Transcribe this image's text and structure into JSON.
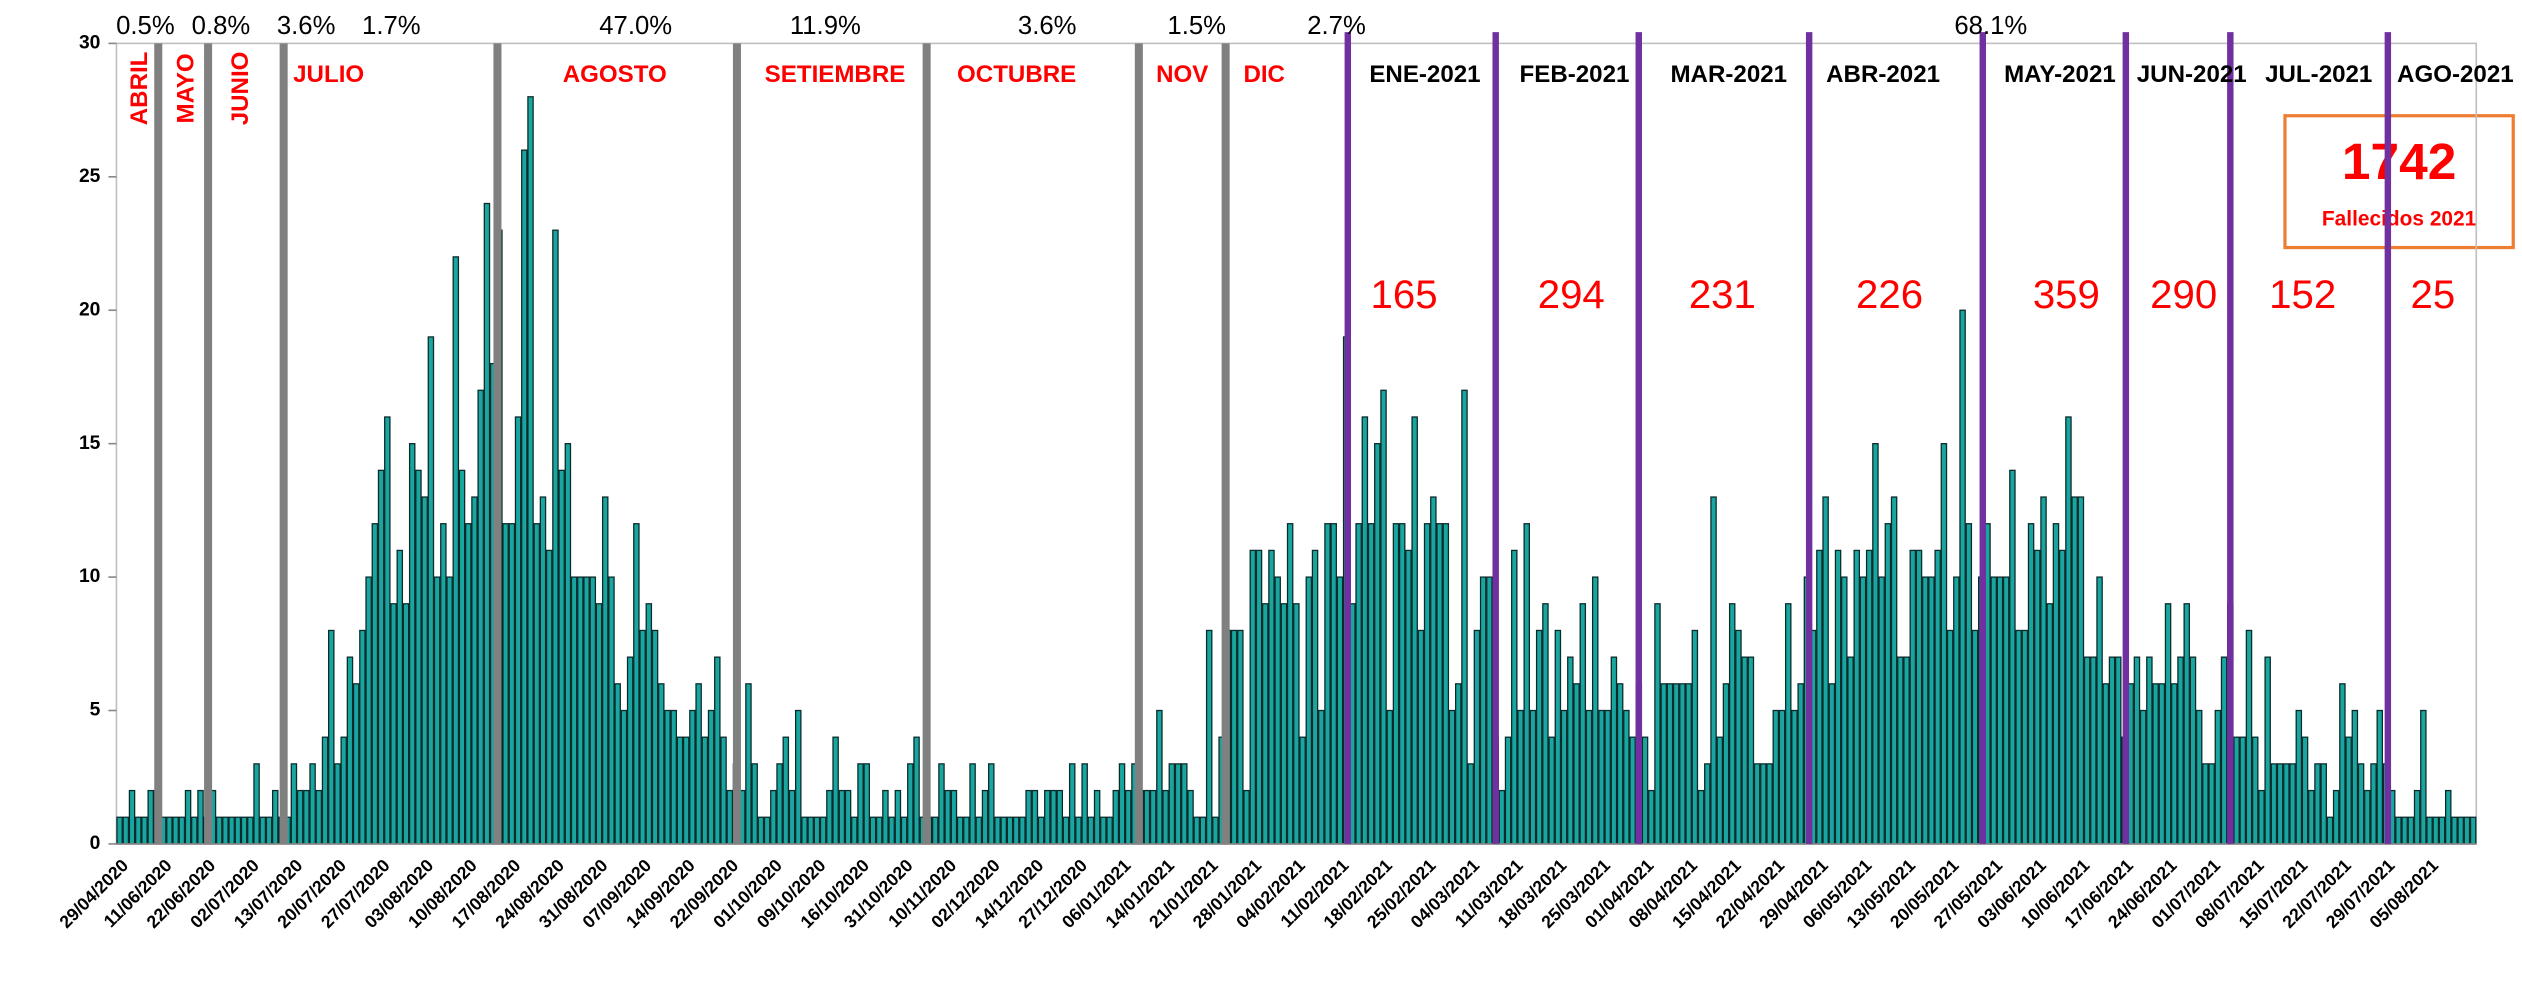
{
  "chart_data": {
    "type": "bar",
    "categories": [
      "29/04/2020",
      null,
      null,
      null,
      null,
      null,
      null,
      "11/06/2020",
      null,
      null,
      null,
      null,
      null,
      null,
      "22/06/2020",
      null,
      null,
      null,
      null,
      null,
      null,
      "02/07/2020",
      null,
      null,
      null,
      null,
      null,
      null,
      "13/07/2020",
      null,
      null,
      null,
      null,
      null,
      null,
      "20/07/2020",
      null,
      null,
      null,
      null,
      null,
      null,
      "27/07/2020",
      null,
      null,
      null,
      null,
      null,
      null,
      "03/08/2020",
      null,
      null,
      null,
      null,
      null,
      null,
      "10/08/2020",
      null,
      null,
      null,
      null,
      null,
      null,
      "17/08/2020",
      null,
      null,
      null,
      null,
      null,
      null,
      "24/08/2020",
      null,
      null,
      null,
      null,
      null,
      null,
      "31/08/2020",
      null,
      null,
      null,
      null,
      null,
      null,
      "07/09/2020",
      null,
      null,
      null,
      null,
      null,
      null,
      "14/09/2020",
      null,
      null,
      null,
      null,
      null,
      null,
      "22/09/2020",
      null,
      null,
      null,
      null,
      null,
      null,
      "01/10/2020",
      null,
      null,
      null,
      null,
      null,
      null,
      "09/10/2020",
      null,
      null,
      null,
      null,
      null,
      null,
      "16/10/2020",
      null,
      null,
      null,
      null,
      null,
      null,
      "31/10/2020",
      null,
      null,
      null,
      null,
      null,
      null,
      "10/11/2020",
      null,
      null,
      null,
      null,
      null,
      null,
      "02/12/2020",
      null,
      null,
      null,
      null,
      null,
      null,
      "14/12/2020",
      null,
      null,
      null,
      null,
      null,
      null,
      "27/12/2020",
      null,
      null,
      null,
      null,
      null,
      null,
      "06/01/2021",
      null,
      null,
      null,
      null,
      null,
      null,
      "14/01/2021",
      null,
      null,
      null,
      null,
      null,
      null,
      "21/01/2021",
      null,
      null,
      null,
      null,
      null,
      null,
      "28/01/2021",
      null,
      null,
      null,
      null,
      null,
      null,
      "04/02/2021",
      null,
      null,
      null,
      null,
      null,
      null,
      "11/02/2021",
      null,
      null,
      null,
      null,
      null,
      null,
      "18/02/2021",
      null,
      null,
      null,
      null,
      null,
      null,
      "25/02/2021",
      null,
      null,
      null,
      null,
      null,
      null,
      "04/03/2021",
      null,
      null,
      null,
      null,
      null,
      null,
      "11/03/2021",
      null,
      null,
      null,
      null,
      null,
      null,
      "18/03/2021",
      null,
      null,
      null,
      null,
      null,
      null,
      "25/03/2021",
      null,
      null,
      null,
      null,
      null,
      null,
      "01/04/2021",
      null,
      null,
      null,
      null,
      null,
      null,
      "08/04/2021",
      null,
      null,
      null,
      null,
      null,
      null,
      "15/04/2021",
      null,
      null,
      null,
      null,
      null,
      null,
      "22/04/2021",
      null,
      null,
      null,
      null,
      null,
      null,
      "29/04/2021",
      null,
      null,
      null,
      null,
      null,
      null,
      "06/05/2021",
      null,
      null,
      null,
      null,
      null,
      null,
      "13/05/2021",
      null,
      null,
      null,
      null,
      null,
      null,
      "20/05/2021",
      null,
      null,
      null,
      null,
      null,
      null,
      "27/05/2021",
      null,
      null,
      null,
      null,
      null,
      null,
      "03/06/2021",
      null,
      null,
      null,
      null,
      null,
      null,
      "10/06/2021",
      null,
      null,
      null,
      null,
      null,
      null,
      "17/06/2021",
      null,
      null,
      null,
      null,
      null,
      null,
      "24/06/2021",
      null,
      null,
      null,
      null,
      null,
      null,
      "01/07/2021",
      null,
      null,
      null,
      null,
      null,
      null,
      "08/07/2021",
      null,
      null,
      null,
      null,
      null,
      null,
      "15/07/2021",
      null,
      null,
      null,
      null,
      null,
      null,
      "22/07/2021",
      null,
      null,
      null,
      null,
      null,
      null,
      "29/07/2021",
      null,
      null,
      null,
      null,
      null,
      null,
      "05/08/2021",
      null,
      null,
      null,
      null,
      null,
      null,
      null
    ],
    "values": [
      1,
      1,
      2,
      1,
      1,
      2,
      2,
      1,
      1,
      1,
      1,
      2,
      1,
      2,
      1,
      2,
      1,
      1,
      1,
      1,
      1,
      1,
      3,
      1,
      1,
      2,
      1,
      1,
      3,
      2,
      2,
      3,
      2,
      4,
      8,
      3,
      4,
      7,
      6,
      8,
      10,
      12,
      14,
      16,
      9,
      11,
      9,
      15,
      14,
      13,
      19,
      10,
      12,
      10,
      22,
      14,
      12,
      13,
      17,
      24,
      18,
      23,
      12,
      12,
      16,
      26,
      28,
      12,
      13,
      11,
      23,
      14,
      15,
      10,
      10,
      10,
      10,
      9,
      13,
      10,
      6,
      5,
      7,
      12,
      8,
      9,
      8,
      6,
      5,
      5,
      4,
      4,
      5,
      6,
      4,
      5,
      7,
      4,
      2,
      3,
      2,
      6,
      3,
      1,
      1,
      2,
      3,
      4,
      2,
      5,
      1,
      1,
      1,
      1,
      2,
      4,
      2,
      2,
      1,
      3,
      3,
      1,
      1,
      2,
      1,
      2,
      1,
      3,
      4,
      1,
      1,
      1,
      3,
      2,
      2,
      1,
      1,
      3,
      1,
      2,
      3,
      1,
      1,
      1,
      1,
      1,
      2,
      2,
      1,
      2,
      2,
      2,
      1,
      3,
      1,
      3,
      1,
      2,
      1,
      1,
      2,
      3,
      2,
      3,
      2,
      2,
      2,
      5,
      2,
      3,
      3,
      3,
      2,
      1,
      1,
      8,
      1,
      4,
      8,
      8,
      8,
      2,
      11,
      11,
      9,
      11,
      10,
      9,
      12,
      9,
      4,
      10,
      11,
      5,
      12,
      12,
      10,
      19,
      9,
      12,
      16,
      12,
      15,
      17,
      5,
      12,
      12,
      11,
      16,
      8,
      12,
      13,
      12,
      12,
      5,
      6,
      17,
      3,
      8,
      10,
      10,
      4,
      2,
      4,
      11,
      5,
      12,
      5,
      8,
      9,
      4,
      8,
      5,
      7,
      6,
      9,
      5,
      10,
      5,
      5,
      7,
      6,
      5,
      4,
      6,
      4,
      2,
      9,
      6,
      6,
      6,
      6,
      6,
      8,
      2,
      3,
      13,
      4,
      6,
      9,
      8,
      7,
      7,
      3,
      3,
      3,
      5,
      5,
      9,
      5,
      6,
      10,
      8,
      11,
      13,
      6,
      11,
      10,
      7,
      11,
      10,
      11,
      15,
      10,
      12,
      13,
      7,
      7,
      11,
      11,
      10,
      10,
      11,
      15,
      8,
      10,
      20,
      12,
      8,
      10,
      12,
      10,
      10,
      10,
      14,
      8,
      8,
      12,
      11,
      13,
      9,
      12,
      11,
      16,
      13,
      13,
      7,
      7,
      10,
      6,
      7,
      7,
      4,
      6,
      7,
      5,
      7,
      6,
      6,
      9,
      6,
      7,
      9,
      7,
      5,
      3,
      3,
      5,
      7,
      9,
      4,
      4,
      8,
      4,
      2,
      7,
      3,
      3,
      3,
      3,
      5,
      4,
      2,
      3,
      3,
      1,
      2,
      6,
      4,
      5,
      3,
      2,
      3,
      5,
      3,
      2,
      1,
      1,
      1,
      2,
      5,
      1,
      1,
      1,
      2,
      1,
      1,
      1,
      1
    ],
    "color": "#1aa6a0",
    "ylim": [
      0,
      30
    ],
    "yticks": [
      0,
      5,
      10,
      15,
      20,
      25,
      30
    ],
    "grid": false,
    "percentages": [
      "0.5%",
      "0.8%",
      "3.6%",
      "1.7%",
      "47.0%",
      "11.9%",
      "3.6%",
      "1.5%",
      "2.7%",
      "68.1%"
    ],
    "months": [
      "ABRIL",
      "MAYO",
      "JUNIO",
      "JULIO",
      "AGOSTO",
      "SETIEMBRE",
      "OCTUBRE",
      "NOV",
      "DIC",
      "ENE-2021",
      "FEB-2021",
      "MAR-2021",
      "ABR-2021",
      "MAY-2021",
      "JUN-2021",
      "JUL-2021",
      "AGO-2021"
    ],
    "monthly_totals": [
      165,
      294,
      231,
      226,
      359,
      290,
      152,
      25
    ],
    "callout": {
      "value": 1742,
      "label": "Fallecidos 2021"
    }
  }
}
